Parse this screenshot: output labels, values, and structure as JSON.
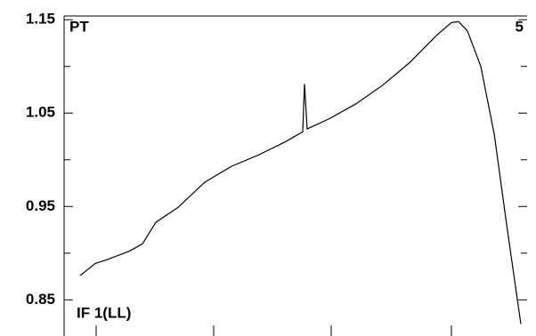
{
  "chart_data": {
    "type": "line",
    "corner_labels": {
      "top_left": "PT",
      "top_right": "5",
      "bottom_left": "IF 1(LL)"
    },
    "x": [
      18,
      35,
      48,
      73,
      88,
      103,
      128,
      158,
      188,
      218,
      248,
      268,
      270,
      273,
      298,
      328,
      358,
      388,
      418,
      435,
      443,
      453,
      468,
      483,
      498,
      513
    ],
    "series": [
      {
        "color": "#000000",
        "values": [
          0.876,
          0.889,
          0.893,
          0.902,
          0.91,
          0.933,
          0.949,
          0.976,
          0.993,
          1.005,
          1.019,
          1.03,
          1.081,
          1.033,
          1.044,
          1.06,
          1.08,
          1.104,
          1.133,
          1.147,
          1.148,
          1.138,
          1.1,
          1.028,
          0.924,
          0.824
        ]
      }
    ],
    "xlim": [
      0,
      520
    ],
    "xticks": [
      36,
      168,
      300,
      435
    ],
    "ylim": [
      0.817,
      1.154
    ],
    "yticks": [
      {
        "value": 0.85,
        "label": "0.85"
      },
      {
        "value": 0.95,
        "label": "0.95"
      },
      {
        "value": 1.05,
        "label": "1.05"
      },
      {
        "value": 1.15,
        "label": "1.15"
      }
    ],
    "minor_yticks": [
      0.9,
      1.0,
      1.1
    ]
  }
}
